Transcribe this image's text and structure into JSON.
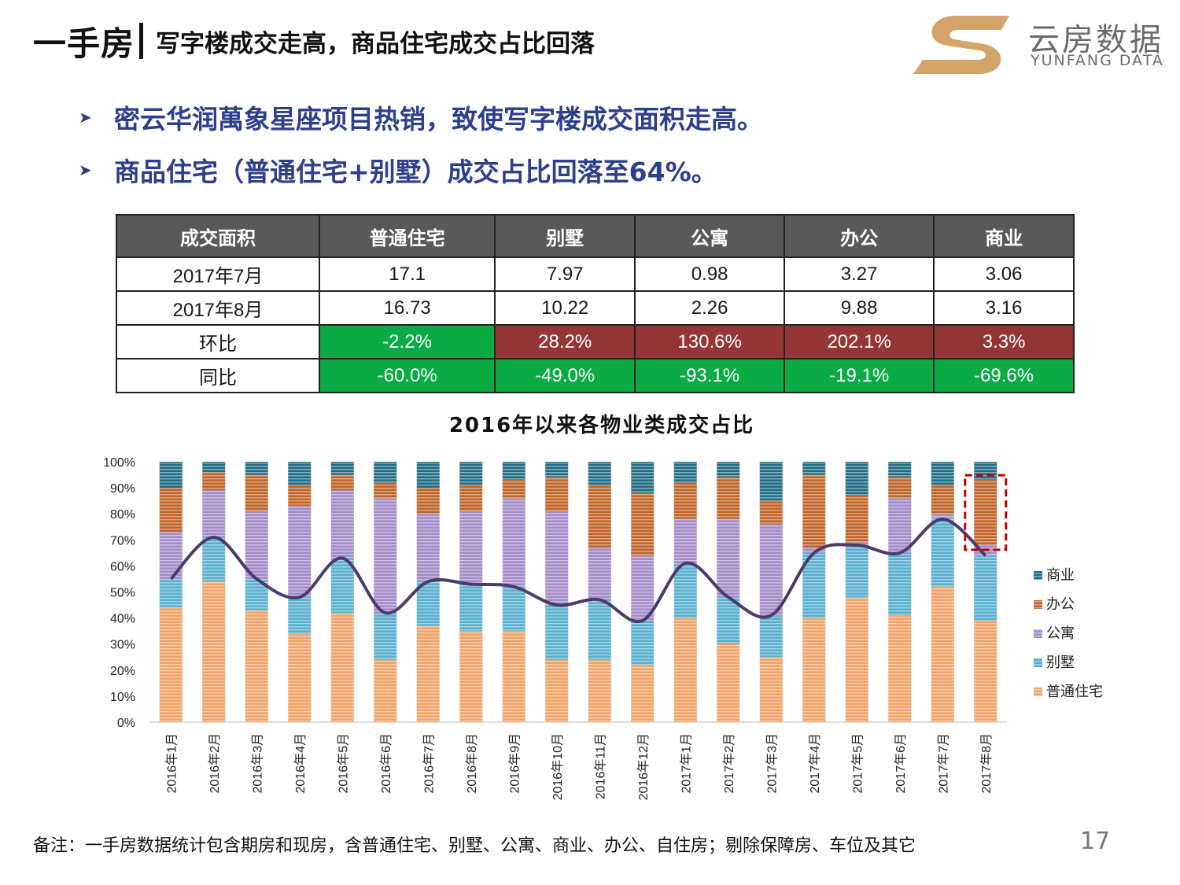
{
  "header": {
    "main": "一手房",
    "sub": "写字楼成交走高，商品住宅成交占比回落"
  },
  "logo": {
    "cn": "云房数据",
    "en": "YUNFANG DATA"
  },
  "bullets": [
    "密云华润萬象星座项目热销，致使写字楼成交面积走高。",
    "商品住宅（普通住宅+别墅）成交占比回落至64%。"
  ],
  "table": {
    "headers": [
      "成交面积",
      "普通住宅",
      "别墅",
      "公寓",
      "办公",
      "商业"
    ],
    "rows": [
      {
        "label": "2017年7月",
        "cells": [
          "17.1",
          "7.97",
          "0.98",
          "3.27",
          "3.06"
        ]
      },
      {
        "label": "2017年8月",
        "cells": [
          "16.73",
          "10.22",
          "2.26",
          "9.88",
          "3.16"
        ]
      },
      {
        "label": "环比",
        "cells": [
          "-2.2%",
          "28.2%",
          "130.6%",
          "202.1%",
          "3.3%"
        ]
      },
      {
        "label": "同比",
        "cells": [
          "-60.0%",
          "-49.0%",
          "-93.1%",
          "-19.1%",
          "-69.6%"
        ]
      }
    ]
  },
  "colors": {
    "positive": "#943636",
    "negative": "#0aab45",
    "line": "#4b3a6b"
  },
  "chart_data": {
    "type": "bar",
    "stacked": true,
    "title": "2016年以来各物业类成交占比",
    "ylim": [
      0,
      100
    ],
    "yticks": [
      "0%",
      "10%",
      "20%",
      "30%",
      "40%",
      "50%",
      "60%",
      "70%",
      "80%",
      "90%",
      "100%"
    ],
    "categories": [
      "2016年1月",
      "2016年2月",
      "2016年3月",
      "2016年4月",
      "2016年5月",
      "2016年6月",
      "2016年7月",
      "2016年8月",
      "2016年9月",
      "2016年10月",
      "2016年11月",
      "2016年12月",
      "2017年1月",
      "2017年2月",
      "2017年3月",
      "2017年4月",
      "2017年5月",
      "2017年6月",
      "2017年7月",
      "2017年8月"
    ],
    "series": [
      {
        "name": "普通住宅",
        "color": "#f0a46a",
        "values": [
          44,
          54,
          43,
          34,
          42,
          24,
          37,
          35,
          35,
          24,
          24,
          22,
          40,
          30,
          25,
          40,
          48,
          41,
          52,
          39
        ]
      },
      {
        "name": "别墅",
        "color": "#5aafcf",
        "values": [
          11,
          17,
          12,
          14,
          21,
          18,
          17,
          18,
          17,
          21,
          23,
          17,
          21,
          18,
          16,
          25,
          20,
          24,
          26,
          25
        ]
      },
      {
        "name": "公寓",
        "color": "#a48cc8",
        "values": [
          18,
          18,
          26,
          35,
          26,
          44,
          26,
          28,
          34,
          36,
          20,
          25,
          17,
          30,
          35,
          2,
          1,
          21,
          2,
          4
        ]
      },
      {
        "name": "办公",
        "color": "#c0652a",
        "values": [
          17,
          7,
          14,
          8,
          6,
          6,
          10,
          10,
          7,
          13,
          24,
          24,
          14,
          16,
          9,
          28,
          18,
          8,
          11,
          25
        ]
      },
      {
        "name": "商业",
        "color": "#236e86",
        "values": [
          10,
          4,
          5,
          9,
          5,
          8,
          10,
          9,
          7,
          6,
          9,
          12,
          8,
          6,
          15,
          5,
          13,
          6,
          9,
          7
        ]
      }
    ],
    "line_values": [
      55,
      71,
      55,
      48,
      63,
      42,
      54,
      53,
      52,
      45,
      47,
      39,
      61,
      48,
      41,
      65,
      68,
      65,
      78,
      64
    ],
    "legend_order": [
      "商业",
      "办公",
      "公寓",
      "别墅",
      "普通住宅"
    ],
    "legend_position": "right",
    "highlight": "2017年8月"
  },
  "footnote": "备注：一手房数据统计包含期房和现房，含普通住宅、别墅、公寓、商业、办公、自住房；剔除保障房、车位及其它",
  "page_number": "17"
}
